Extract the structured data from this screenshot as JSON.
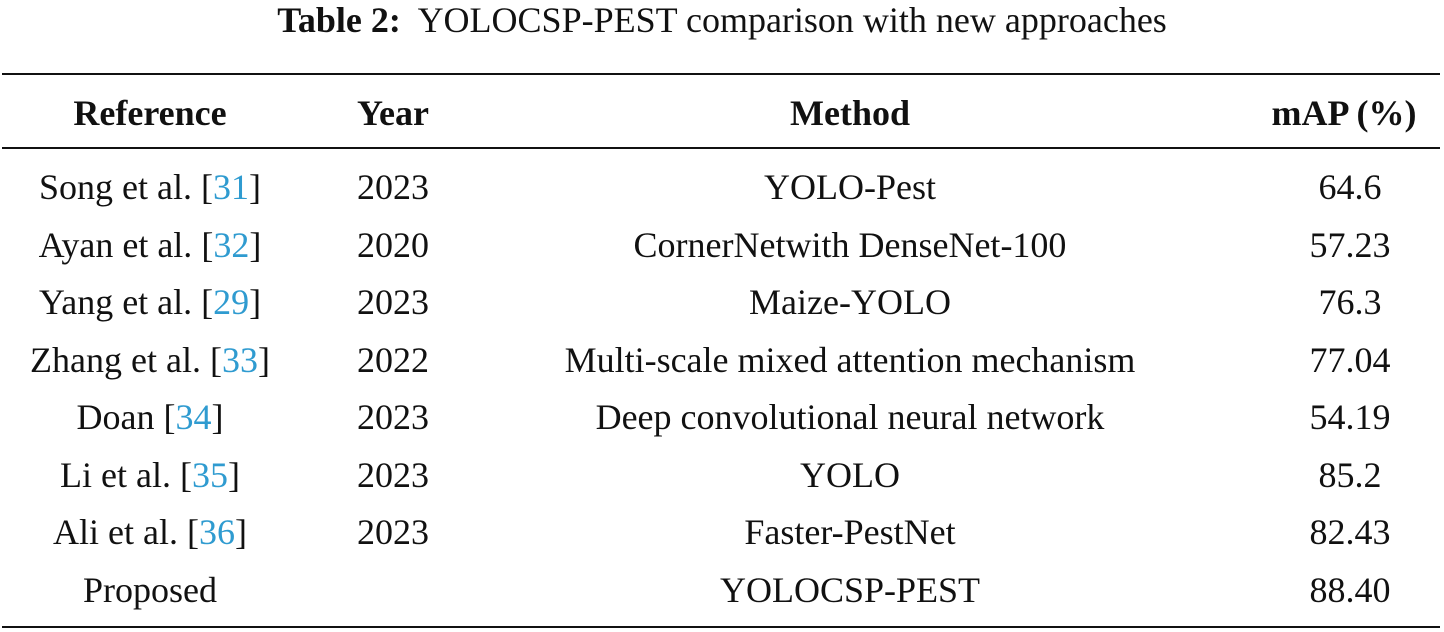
{
  "caption": {
    "label": "Table 2:",
    "text": "YOLOCSP-PEST comparison with new approaches"
  },
  "table": {
    "headers": [
      "Reference",
      "Year",
      "Method",
      "mAP (%)"
    ],
    "rows": [
      {
        "ref_name": "Song et al.",
        "ref_cite": "31",
        "year": "2023",
        "method": "YOLO-Pest",
        "map": "64.6"
      },
      {
        "ref_name": "Ayan et al.",
        "ref_cite": "32",
        "year": "2020",
        "method": "CornerNetwith DenseNet-100",
        "map": "57.23"
      },
      {
        "ref_name": "Yang et al.",
        "ref_cite": "29",
        "year": "2023",
        "method": "Maize-YOLO",
        "map": "76.3"
      },
      {
        "ref_name": "Zhang et al.",
        "ref_cite": "33",
        "year": "2022",
        "method": "Multi-scale mixed attention mechanism",
        "map": "77.04"
      },
      {
        "ref_name": "Doan",
        "ref_cite": "34",
        "year": "2023",
        "method": "Deep convolutional neural network",
        "map": "54.19"
      },
      {
        "ref_name": "Li et al.",
        "ref_cite": "35",
        "year": "2023",
        "method": "YOLO",
        "map": "85.2"
      },
      {
        "ref_name": "Ali et al.",
        "ref_cite": "36",
        "year": "2023",
        "method": "Faster-PestNet",
        "map": "82.43"
      },
      {
        "ref_name": "Proposed",
        "ref_cite": "",
        "year": "",
        "method": "YOLOCSP-PEST",
        "map": "88.40"
      }
    ]
  },
  "colors": {
    "text": "#111111",
    "citation": "#2f9bd0",
    "rule": "#111111"
  }
}
